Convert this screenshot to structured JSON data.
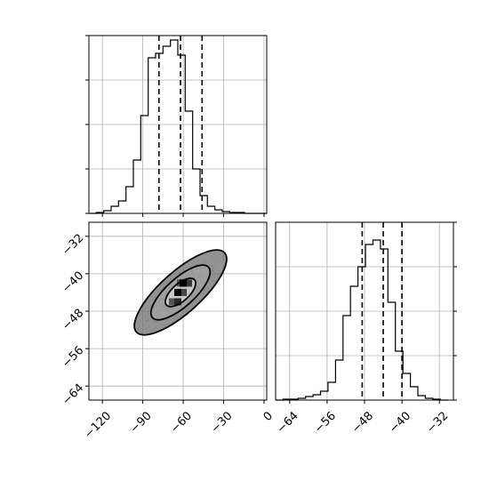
{
  "chart_data": [
    {
      "type": "histogram",
      "panel": "top-left",
      "x_range": [
        -130,
        2
      ],
      "bin_width": 5.5,
      "bin_counts": [
        0,
        1,
        3,
        8,
        14,
        30,
        60,
        110,
        175,
        180,
        188,
        195,
        178,
        115,
        50,
        20,
        8,
        4,
        2,
        1,
        1,
        0,
        0,
        0
      ],
      "ylim": [
        0,
        200
      ],
      "quantile_lines": [
        -78,
        -62,
        -46
      ],
      "grid": true,
      "y_tick_values": [
        0,
        50,
        100,
        150,
        200
      ],
      "x_tick_values": [
        -120,
        -90,
        -60,
        -30,
        0
      ]
    },
    {
      "type": "heatmap",
      "panel": "bottom-left",
      "x_range": [
        -130,
        2
      ],
      "y_range": [
        -67,
        -29
      ],
      "xlabel": "",
      "ylabel": "",
      "x_tick_labels": [
        "−120",
        "−90",
        "−60",
        "−30",
        "0"
      ],
      "x_tick_values": [
        -120,
        -90,
        -60,
        -30,
        0
      ],
      "y_tick_labels": [
        "−32",
        "−40",
        "−48",
        "−56",
        "−64"
      ],
      "y_tick_values": [
        -32,
        -40,
        -48,
        -56,
        -64
      ],
      "center": [
        -62,
        -44
      ],
      "density_cells": [
        {
          "x": -68,
          "y": -46,
          "v": 0.45
        },
        {
          "x": -62,
          "y": -42,
          "v": 0.45
        },
        {
          "x": -64,
          "y": -44,
          "v": 0.6
        },
        {
          "x": -60,
          "y": -44,
          "v": 0.55
        },
        {
          "x": -64,
          "y": -46,
          "v": 0.75
        },
        {
          "x": -60,
          "y": -42,
          "v": 0.85
        },
        {
          "x": -56,
          "y": -42,
          "v": 0.65
        },
        {
          "x": -64,
          "y": -44,
          "v": 0.95
        },
        {
          "x": -60,
          "y": -42,
          "v": 1.0
        }
      ],
      "contours": [
        {
          "cx": -62,
          "cy": -44,
          "a": 7,
          "b": 3.2,
          "angle_deg": 42
        },
        {
          "cx": -62,
          "cy": -44,
          "a": 14,
          "b": 5.2,
          "angle_deg": 42
        },
        {
          "cx": -62,
          "cy": -44,
          "a": 22,
          "b": 7.6,
          "angle_deg": 42
        }
      ],
      "grid": true
    },
    {
      "type": "histogram",
      "panel": "bottom-right",
      "x_range": [
        -67,
        -29
      ],
      "bin_width": 1.6,
      "bin_counts": [
        0,
        1,
        1,
        2,
        4,
        6,
        10,
        20,
        45,
        95,
        128,
        150,
        175,
        180,
        170,
        110,
        55,
        30,
        15,
        5,
        2,
        1,
        0
      ],
      "ylim": [
        0,
        200
      ],
      "quantile_lines": [
        -48.5,
        -44.0,
        -40.0
      ],
      "x_tick_labels": [
        "−64",
        "−56",
        "−48",
        "−40",
        "−32"
      ],
      "x_tick_values": [
        -64,
        -56,
        -48,
        -40,
        -32
      ],
      "y_tick_values": [
        0,
        50,
        100,
        150,
        200
      ],
      "grid": true
    }
  ]
}
